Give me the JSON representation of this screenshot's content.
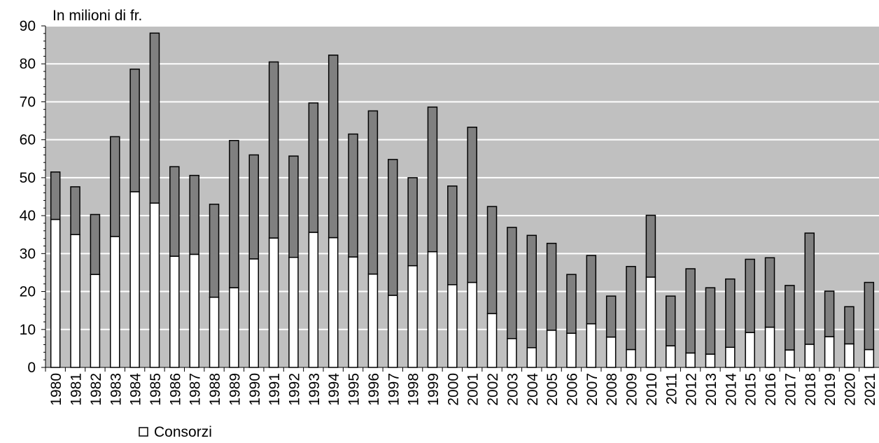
{
  "chart_data": {
    "type": "bar",
    "stacked": true,
    "unit_label": "In milioni di fr.",
    "categories": [
      "1980",
      "1981",
      "1982",
      "1983",
      "1984",
      "1985",
      "1986",
      "1987",
      "1988",
      "1989",
      "1990",
      "1991",
      "1992",
      "1993",
      "1994",
      "1995",
      "1996",
      "1997",
      "1998",
      "1999",
      "2000",
      "2001",
      "2002",
      "2003",
      "2004",
      "2005",
      "2006",
      "2007",
      "2008",
      "2009",
      "2010",
      "2011",
      "2012",
      "2013",
      "2014",
      "2015",
      "2016",
      "2017",
      "2018",
      "2019",
      "2020",
      "2021"
    ],
    "series": [
      {
        "name": "Consorzi",
        "color": "#ffffff",
        "values": [
          39,
          35,
          24.5,
          34.5,
          46.3,
          43.3,
          29.3,
          29.8,
          18.5,
          21,
          28.6,
          34.1,
          29,
          35.6,
          34.2,
          29.1,
          24.6,
          19,
          26.8,
          30.5,
          21.8,
          22.4,
          14.2,
          7.6,
          5.2,
          9.8,
          9,
          11.5,
          8,
          4.7,
          23.8,
          5.7,
          3.8,
          3.5,
          5.3,
          9.2,
          10.6,
          4.6,
          6.1,
          8.1,
          6.2,
          4.7
        ]
      },
      {
        "color": "#808080",
        "values": [
          12.5,
          12.6,
          15.8,
          26.3,
          32.3,
          44.8,
          23.6,
          20.8,
          24.5,
          38.8,
          27.4,
          46.4,
          26.7,
          34.1,
          48.1,
          32.4,
          43,
          35.8,
          23.2,
          38.1,
          26,
          40.9,
          28.2,
          29.3,
          29.6,
          22.9,
          15.5,
          18,
          10.8,
          21.9,
          16.3,
          13.1,
          22.2,
          17.5,
          18,
          19.3,
          18.3,
          17,
          29.3,
          12,
          9.8,
          17.7
        ]
      }
    ],
    "ylim": [
      0,
      90
    ],
    "yticks": [
      0,
      10,
      20,
      30,
      40,
      50,
      60,
      70,
      80,
      90
    ],
    "grid": true,
    "plot_background": "#c0c0c0",
    "legend_position": "bottom-left"
  }
}
